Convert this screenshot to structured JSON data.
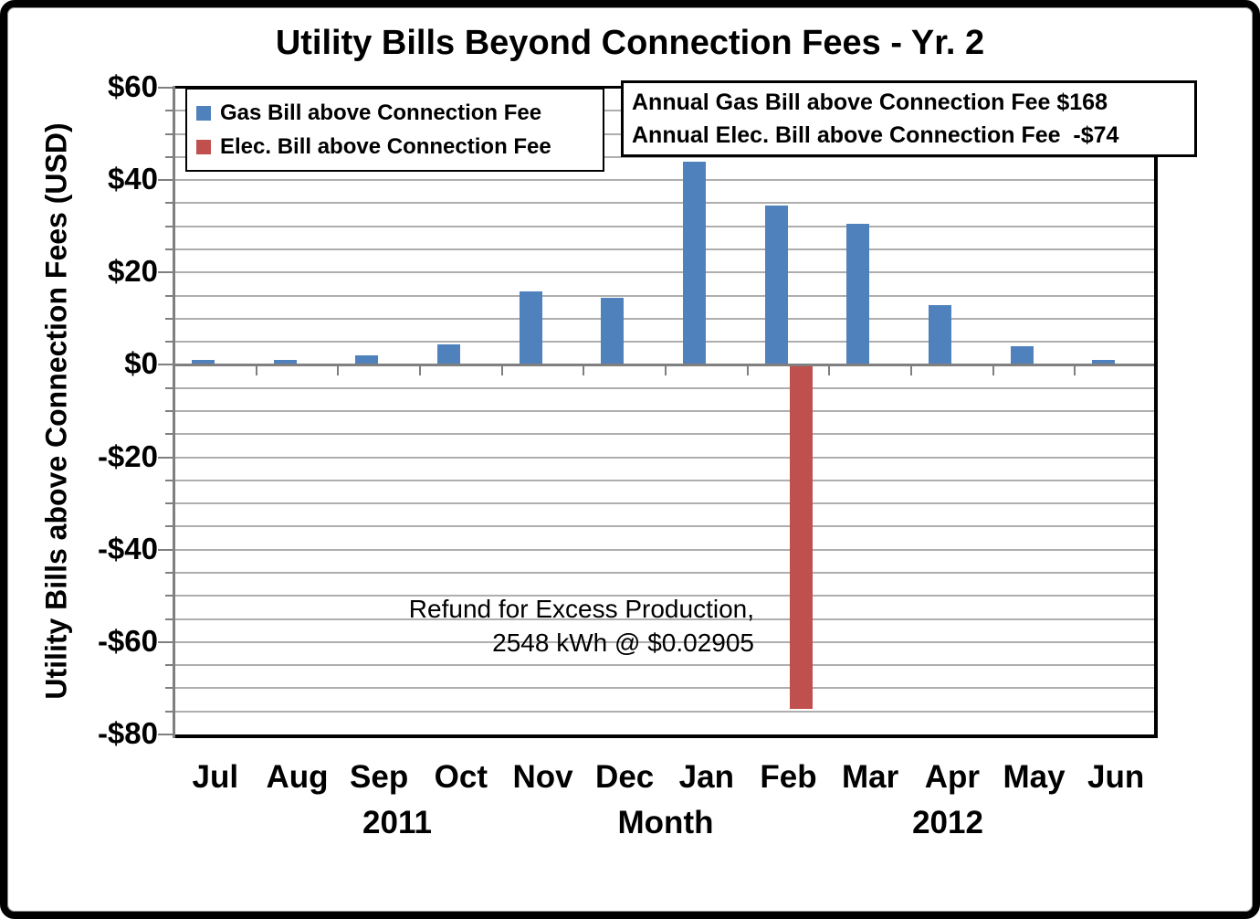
{
  "title": "Utility Bills Beyond Connection Fees - Yr. 2",
  "y_axis": {
    "title": "Utility Bills above Connection Fees (USD)",
    "tick_values": [
      60,
      40,
      20,
      0,
      -20,
      -40,
      -60,
      -80
    ],
    "tick_labels": [
      "$60",
      "$40",
      "$20",
      "$0",
      "-$20",
      "-$40",
      "-$60",
      "-$80"
    ]
  },
  "x_axis": {
    "left_year": "2011",
    "axis_title": "Month",
    "right_year": "2012"
  },
  "summary_box": {
    "line1": "Annual Gas Bill above Connection Fee $168",
    "line2": "Annual Elec. Bill above Connection Fee  -$74"
  },
  "refund_note": {
    "line1": "Refund for Excess Production,",
    "line2": "2548 kWh @ $0.02905"
  },
  "chart_data": {
    "type": "bar",
    "title": "Utility Bills Beyond Connection Fees - Yr. 2",
    "categories": [
      "Jul",
      "Aug",
      "Sep",
      "Oct",
      "Nov",
      "Dec",
      "Jan",
      "Feb",
      "Mar",
      "Apr",
      "May",
      "Jun"
    ],
    "series": [
      {
        "name": "Gas Bill above Connection Fee",
        "color": "#4F81BD",
        "values": [
          1,
          1,
          2,
          4.5,
          16,
          14.5,
          44,
          34.5,
          30.5,
          13,
          4,
          1
        ]
      },
      {
        "name": "Elec. Bill above Connection Fee",
        "color": "#C0504D",
        "values": [
          0,
          0,
          0,
          0,
          0,
          0,
          0,
          -74,
          0,
          0,
          0,
          0
        ]
      }
    ],
    "xlabel": "Month",
    "ylabel": "Utility Bills above Connection Fees (USD)",
    "ylim": [
      -80,
      60
    ],
    "ytick_step": 20,
    "gridline_step": 5,
    "grid": true,
    "legend_position": "top-left",
    "annotations": [
      "Annual Gas Bill above Connection Fee $168",
      "Annual Elec. Bill above Connection Fee  -$74",
      "Refund for Excess Production, 2548 kWh @ $0.02905"
    ]
  }
}
